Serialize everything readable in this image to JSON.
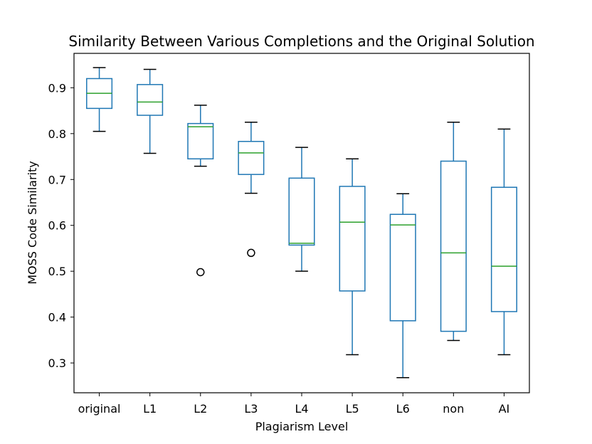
{
  "chart_data": {
    "type": "boxplot",
    "title": "Similarity Between Various Completions and the Original Solution",
    "xlabel": "Plagiarism Level",
    "ylabel": "MOSS Code Similarity",
    "ylim": [
      0.235,
      0.975
    ],
    "yticks": [
      0.3,
      0.4,
      0.5,
      0.6,
      0.7,
      0.8,
      0.9
    ],
    "categories": [
      "original",
      "L1",
      "L2",
      "L3",
      "L4",
      "L5",
      "L6",
      "non",
      "AI"
    ],
    "boxes": [
      {
        "category": "original",
        "whisker_low": 0.805,
        "q1": 0.855,
        "median": 0.888,
        "q3": 0.92,
        "whisker_high": 0.944,
        "outliers": []
      },
      {
        "category": "L1",
        "whisker_low": 0.757,
        "q1": 0.84,
        "median": 0.869,
        "q3": 0.907,
        "whisker_high": 0.94,
        "outliers": []
      },
      {
        "category": "L2",
        "whisker_low": 0.729,
        "q1": 0.745,
        "median": 0.815,
        "q3": 0.822,
        "whisker_high": 0.862,
        "outliers": [
          0.498
        ]
      },
      {
        "category": "L3",
        "whisker_low": 0.67,
        "q1": 0.711,
        "median": 0.758,
        "q3": 0.783,
        "whisker_high": 0.825,
        "outliers": [
          0.54
        ]
      },
      {
        "category": "L4",
        "whisker_low": 0.5,
        "q1": 0.557,
        "median": 0.561,
        "q3": 0.703,
        "whisker_high": 0.77,
        "outliers": []
      },
      {
        "category": "L5",
        "whisker_low": 0.318,
        "q1": 0.457,
        "median": 0.607,
        "q3": 0.685,
        "whisker_high": 0.745,
        "outliers": []
      },
      {
        "category": "L6",
        "whisker_low": 0.268,
        "q1": 0.392,
        "median": 0.601,
        "q3": 0.624,
        "whisker_high": 0.669,
        "outliers": []
      },
      {
        "category": "non",
        "whisker_low": 0.349,
        "q1": 0.369,
        "median": 0.54,
        "q3": 0.74,
        "whisker_high": 0.825,
        "outliers": []
      },
      {
        "category": "AI",
        "whisker_low": 0.318,
        "q1": 0.412,
        "median": 0.511,
        "q3": 0.683,
        "whisker_high": 0.81,
        "outliers": []
      }
    ],
    "colors": {
      "box": "#1f77b4",
      "median": "#2ca02c",
      "cap": "#000000",
      "outlier": "#000000",
      "frame": "#000000"
    },
    "grid": false
  }
}
